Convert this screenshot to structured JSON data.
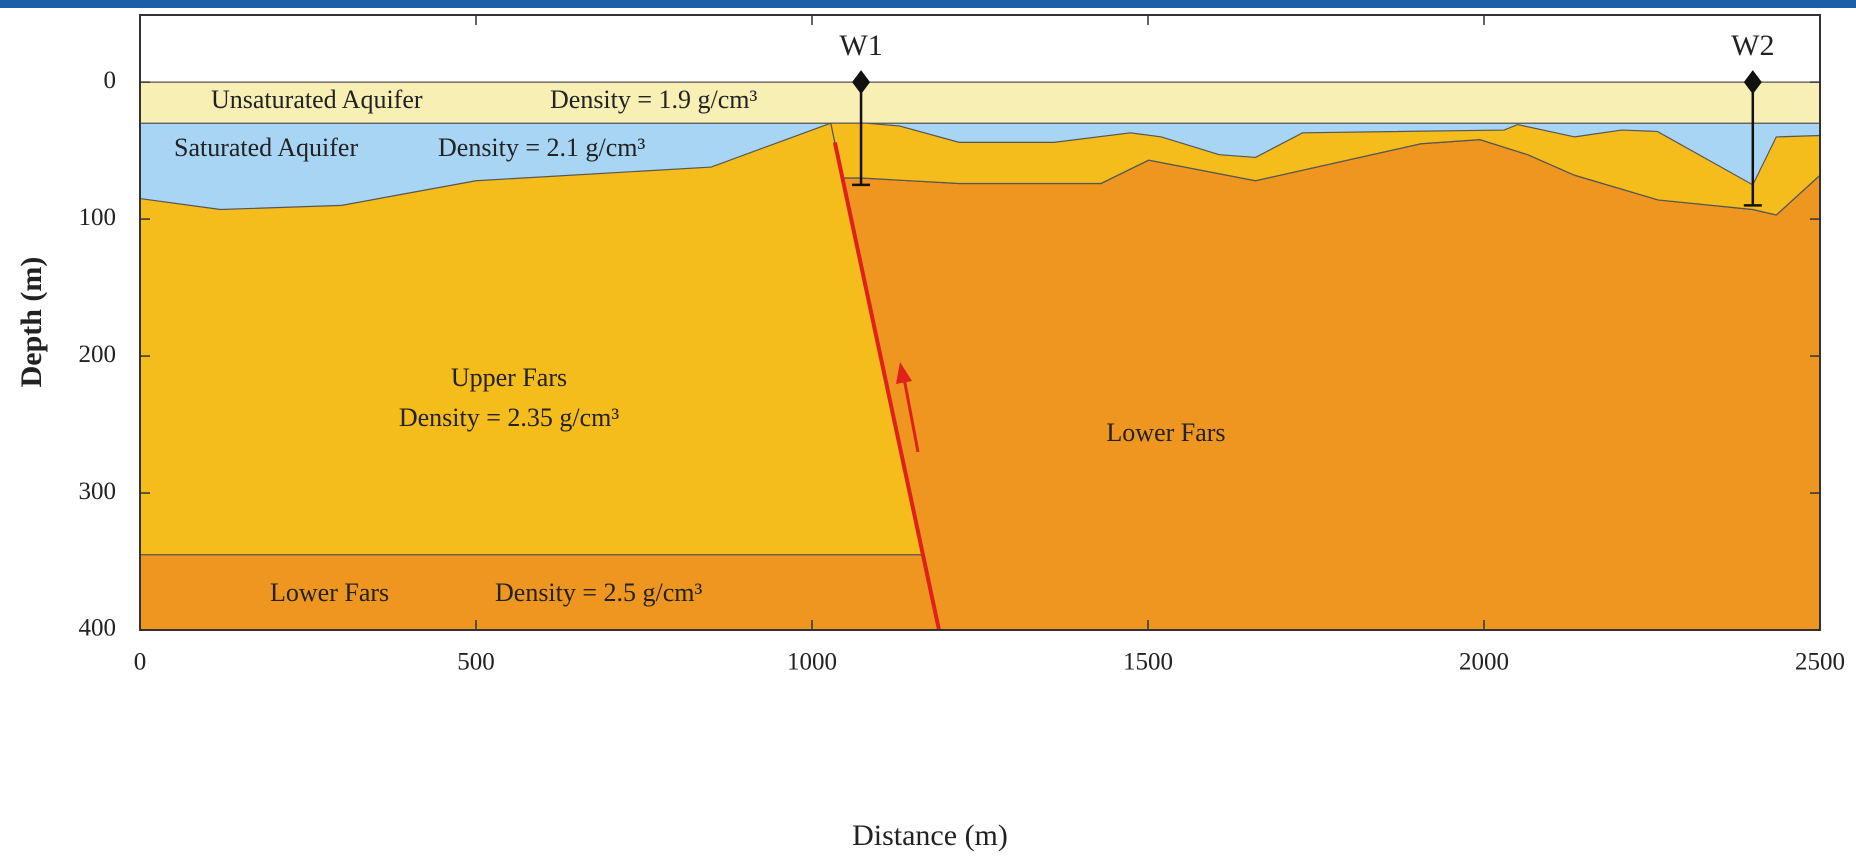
{
  "chart_data": {
    "type": "cross-section",
    "x_label": "Distance (m)",
    "y_label": "Depth (m)",
    "xlim": [
      0,
      2500
    ],
    "ylim": [
      400,
      -49
    ],
    "xticks": [
      0,
      500,
      1000,
      1500,
      2000,
      2500
    ],
    "yticks": [
      0,
      100,
      200,
      300,
      400
    ],
    "layers": [
      {
        "name": "Saturated Aquifer",
        "density": "Density = 2.1 g/cm³",
        "color": "#a9d5f5",
        "parts": [
          {
            "x": [
              0,
              2500,
              2500,
              0
            ],
            "depth": [
              30,
              30,
              100,
              100
            ]
          }
        ]
      },
      {
        "name": "Unsaturated Aquifer",
        "density": "Density = 1.9 g/cm³",
        "color": "#f7efb4",
        "parts": [
          {
            "x": [
              0,
              2500,
              2500,
              0
            ],
            "depth": [
              0,
              0,
              30,
              30
            ]
          }
        ]
      },
      {
        "name": "Lower Fars",
        "color": "#ef9620",
        "parts": [
          {
            "x": [
              1045,
              1073,
              1219,
              1430,
              1501,
              1660,
              1906,
              1994,
              2065,
              2135,
              2259,
              2400,
              2435,
              2500,
              2500,
              1189
            ],
            "depth": [
              70,
              70,
              74,
              74,
              57,
              72,
              45,
              42,
              53,
              68,
              86,
              93,
              97,
              68,
              400,
              400
            ]
          }
        ]
      },
      {
        "name": "Lower Fars",
        "density": "Density = 2.5 g/cm³",
        "color": "#ef9620",
        "parts": [
          {
            "x": [
              0,
              1165,
              1189,
              0
            ],
            "depth": [
              345,
              345,
              400,
              400
            ]
          }
        ]
      },
      {
        "name": "Upper Fars",
        "density": "Density = 2.35 g/cm³",
        "color": "#f4bd1c",
        "parts": [
          {
            "x": [
              0,
              120,
              300,
              500,
              850,
              1000,
              1028,
              1165,
              0
            ],
            "depth": [
              85,
              93,
              90,
              72,
              62,
              35,
              30,
              345,
              345
            ]
          },
          {
            "x": [
              1028,
              1080,
              1130,
              1219,
              1360,
              1474,
              1520,
              1606,
              1660,
              1730,
              2030,
              2050,
              2135,
              2205,
              2258,
              2400,
              2435,
              2500,
              2500,
              2435,
              2400,
              2259,
              2135,
              2065,
              1994,
              1906,
              1660,
              1501,
              1430,
              1219,
              1073,
              1045
            ],
            "depth": [
              30,
              30,
              32,
              44,
              44,
              37,
              40,
              53,
              55,
              37,
              35,
              31,
              40,
              35,
              36,
              75,
              40,
              39,
              68,
              97,
              93,
              86,
              68,
              53,
              42,
              45,
              72,
              57,
              74,
              74,
              70,
              70
            ]
          }
        ]
      }
    ],
    "wells": [
      {
        "name": "W1",
        "x": 1073,
        "depth_top": 0,
        "depth_bottom": 75
      },
      {
        "name": "W2",
        "x": 2400,
        "depth_top": 0,
        "depth_bottom": 90
      }
    ],
    "fault": {
      "color": "#e0201a",
      "x": [
        1034,
        1189
      ],
      "depth": [
        44,
        400
      ]
    }
  }
}
